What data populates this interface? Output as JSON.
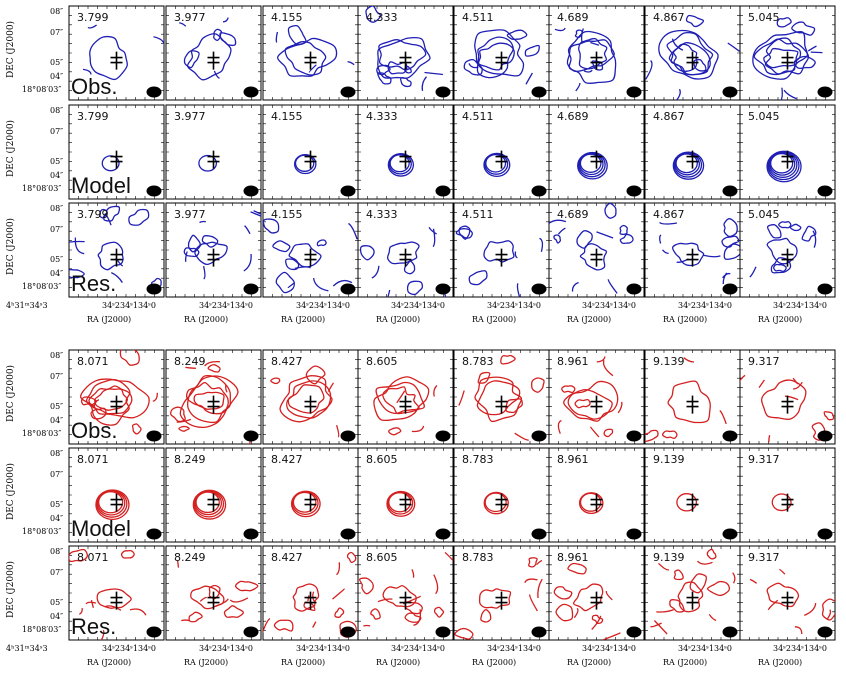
{
  "colors": {
    "blue": "#1f1fb4",
    "red": "#d42020",
    "frame": "#000000",
    "beam": "#000000"
  },
  "axes": {
    "ylabel": "DEC (J2000)",
    "xlabel": "RA (J2000)",
    "dec_ticks": [
      "08″",
      "07″",
      "05″",
      "04″"
    ],
    "dec_origin": "18°08′03″",
    "ra_ticks": [
      "34ˢ2",
      "34ˢ1",
      "34ˢ0"
    ],
    "ra_origin": "4ʰ31ᵐ34ˢ3"
  },
  "row_labels": [
    "Obs.",
    "Model",
    "Res."
  ],
  "groups": [
    {
      "name": "blue-group",
      "color_key": "blue",
      "channels": [
        "3.799",
        "3.977",
        "4.155",
        "4.333",
        "4.511",
        "4.689",
        "4.867",
        "5.045"
      ]
    },
    {
      "name": "red-group",
      "color_key": "red",
      "channels": [
        "8.071",
        "8.249",
        "8.427",
        "8.605",
        "8.783",
        "8.961",
        "9.139",
        "9.317"
      ]
    }
  ]
}
